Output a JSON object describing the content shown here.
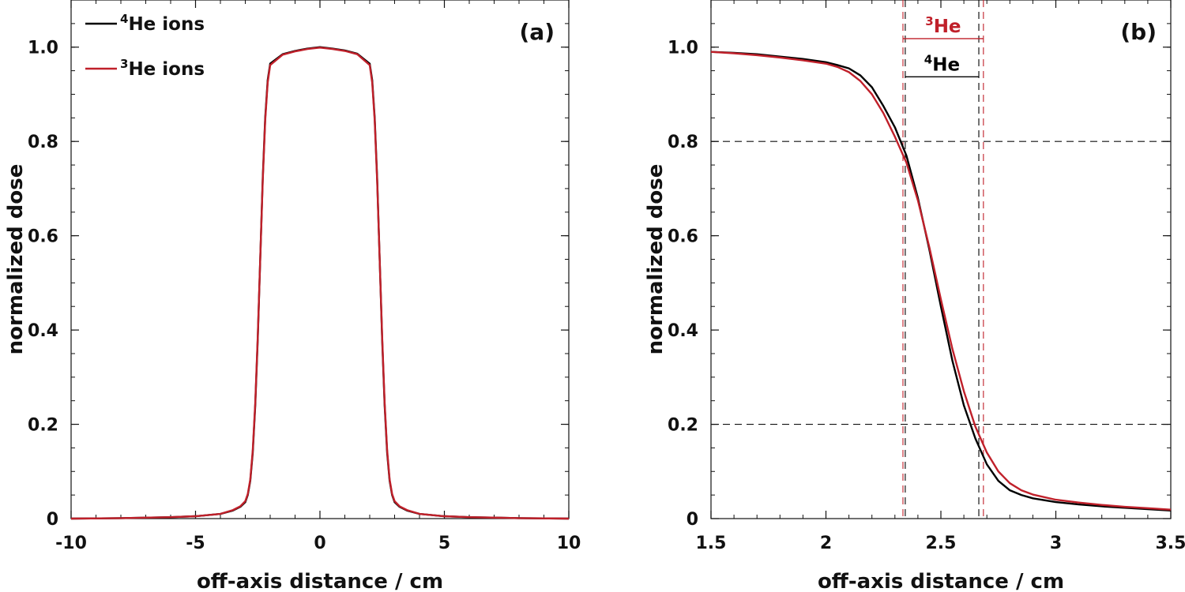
{
  "colors": {
    "he4": "#000000",
    "he3": "#c0202a"
  },
  "chart_data": [
    {
      "type": "line",
      "panel_label": "(a)",
      "xlabel": "off-axis distance / cm",
      "ylabel": "normalized dose",
      "xlim": [
        -10,
        10
      ],
      "ylim": [
        0,
        1.1
      ],
      "xticks": [
        -10,
        -5,
        0,
        5,
        10
      ],
      "xtick_labels": [
        "-10",
        "-5",
        "0",
        "5",
        "10"
      ],
      "yticks": [
        0,
        0.2,
        0.4,
        0.6,
        0.8,
        1.0
      ],
      "ytick_labels": [
        "0",
        "0.2",
        "0.4",
        "0.6",
        "0.8",
        "1.0"
      ],
      "legend_position": "top-left",
      "series": [
        {
          "name": "He ions",
          "isotope": "4",
          "color_key": "he4",
          "x": [
            -10,
            -8,
            -6,
            -5,
            -4,
            -3.5,
            -3.2,
            -3.0,
            -2.9,
            -2.8,
            -2.7,
            -2.6,
            -2.5,
            -2.4,
            -2.3,
            -2.2,
            -2.1,
            -2.0,
            -1.5,
            -1.0,
            -0.5,
            0,
            0.5,
            1.0,
            1.5,
            2.0,
            2.1,
            2.2,
            2.3,
            2.4,
            2.5,
            2.6,
            2.7,
            2.8,
            2.9,
            3.0,
            3.2,
            3.5,
            4,
            5,
            6,
            8,
            10
          ],
          "y": [
            0.0,
            0.001,
            0.003,
            0.005,
            0.01,
            0.017,
            0.025,
            0.035,
            0.05,
            0.08,
            0.14,
            0.24,
            0.38,
            0.55,
            0.72,
            0.85,
            0.93,
            0.965,
            0.985,
            0.992,
            0.997,
            1.0,
            0.997,
            0.993,
            0.986,
            0.965,
            0.93,
            0.85,
            0.72,
            0.55,
            0.38,
            0.24,
            0.14,
            0.08,
            0.05,
            0.035,
            0.025,
            0.017,
            0.01,
            0.005,
            0.003,
            0.001,
            0.0
          ]
        },
        {
          "name": "He ions",
          "isotope": "3",
          "color_key": "he3",
          "x": [
            -10,
            -8,
            -6,
            -5,
            -4,
            -3.5,
            -3.2,
            -3.0,
            -2.9,
            -2.8,
            -2.7,
            -2.6,
            -2.5,
            -2.4,
            -2.3,
            -2.2,
            -2.1,
            -2.0,
            -1.5,
            -1.0,
            -0.5,
            0,
            0.5,
            1.0,
            1.5,
            2.0,
            2.1,
            2.2,
            2.3,
            2.4,
            2.5,
            2.6,
            2.7,
            2.8,
            2.9,
            3.0,
            3.2,
            3.5,
            4,
            5,
            6,
            8,
            10
          ],
          "y": [
            0.0,
            0.001,
            0.003,
            0.005,
            0.01,
            0.018,
            0.026,
            0.037,
            0.052,
            0.083,
            0.145,
            0.245,
            0.385,
            0.55,
            0.715,
            0.845,
            0.925,
            0.962,
            0.984,
            0.991,
            0.996,
            0.999,
            0.996,
            0.992,
            0.985,
            0.962,
            0.925,
            0.845,
            0.715,
            0.55,
            0.385,
            0.245,
            0.145,
            0.083,
            0.052,
            0.037,
            0.026,
            0.018,
            0.01,
            0.005,
            0.003,
            0.001,
            0.0
          ]
        }
      ]
    },
    {
      "type": "line",
      "panel_label": "(b)",
      "xlabel": "off-axis distance / cm",
      "ylabel": "normalized dose",
      "xlim": [
        1.5,
        3.5
      ],
      "ylim": [
        0,
        1.1
      ],
      "xticks": [
        1.5,
        2,
        2.5,
        3,
        3.5
      ],
      "xtick_labels": [
        "1.5",
        "2",
        "2.5",
        "3",
        "3.5"
      ],
      "yticks": [
        0,
        0.2,
        0.4,
        0.6,
        0.8,
        1.0
      ],
      "ytick_labels": [
        "0",
        "0.2",
        "0.4",
        "0.6",
        "0.8",
        "1.0"
      ],
      "hlines": [
        0.8,
        0.2
      ],
      "vlines": [
        {
          "x": 2.335,
          "color_key": "he3"
        },
        {
          "x": 2.345,
          "color_key": "he4"
        },
        {
          "x": 2.665,
          "color_key": "he4"
        },
        {
          "x": 2.685,
          "color_key": "he3"
        }
      ],
      "annotations": [
        {
          "text": "He",
          "isotope": "3",
          "color_key": "he3",
          "x1": 2.335,
          "x2": 2.685,
          "y": 1.018
        },
        {
          "text": "He",
          "isotope": "4",
          "color_key": "he4",
          "x1": 2.345,
          "x2": 2.665,
          "y": 0.937
        }
      ],
      "series": [
        {
          "name": "He",
          "isotope": "4",
          "color_key": "he4",
          "x": [
            1.5,
            1.6,
            1.7,
            1.8,
            1.9,
            2.0,
            2.05,
            2.1,
            2.15,
            2.2,
            2.25,
            2.3,
            2.35,
            2.4,
            2.45,
            2.5,
            2.55,
            2.6,
            2.65,
            2.7,
            2.75,
            2.8,
            2.85,
            2.9,
            3.0,
            3.1,
            3.2,
            3.3,
            3.4,
            3.5
          ],
          "y": [
            0.99,
            0.988,
            0.985,
            0.98,
            0.975,
            0.968,
            0.962,
            0.955,
            0.94,
            0.915,
            0.875,
            0.83,
            0.77,
            0.68,
            0.57,
            0.45,
            0.335,
            0.24,
            0.17,
            0.115,
            0.08,
            0.06,
            0.05,
            0.043,
            0.035,
            0.03,
            0.026,
            0.023,
            0.02,
            0.017
          ]
        },
        {
          "name": "He",
          "isotope": "3",
          "color_key": "he3",
          "x": [
            1.5,
            1.6,
            1.7,
            1.8,
            1.9,
            2.0,
            2.05,
            2.1,
            2.15,
            2.2,
            2.25,
            2.3,
            2.35,
            2.4,
            2.45,
            2.5,
            2.55,
            2.6,
            2.65,
            2.7,
            2.75,
            2.8,
            2.85,
            2.9,
            3.0,
            3.1,
            3.2,
            3.3,
            3.4,
            3.5
          ],
          "y": [
            0.99,
            0.987,
            0.983,
            0.978,
            0.972,
            0.965,
            0.958,
            0.947,
            0.928,
            0.9,
            0.86,
            0.81,
            0.755,
            0.675,
            0.575,
            0.465,
            0.36,
            0.27,
            0.195,
            0.14,
            0.1,
            0.075,
            0.06,
            0.051,
            0.04,
            0.034,
            0.029,
            0.025,
            0.022,
            0.019
          ]
        }
      ]
    }
  ]
}
